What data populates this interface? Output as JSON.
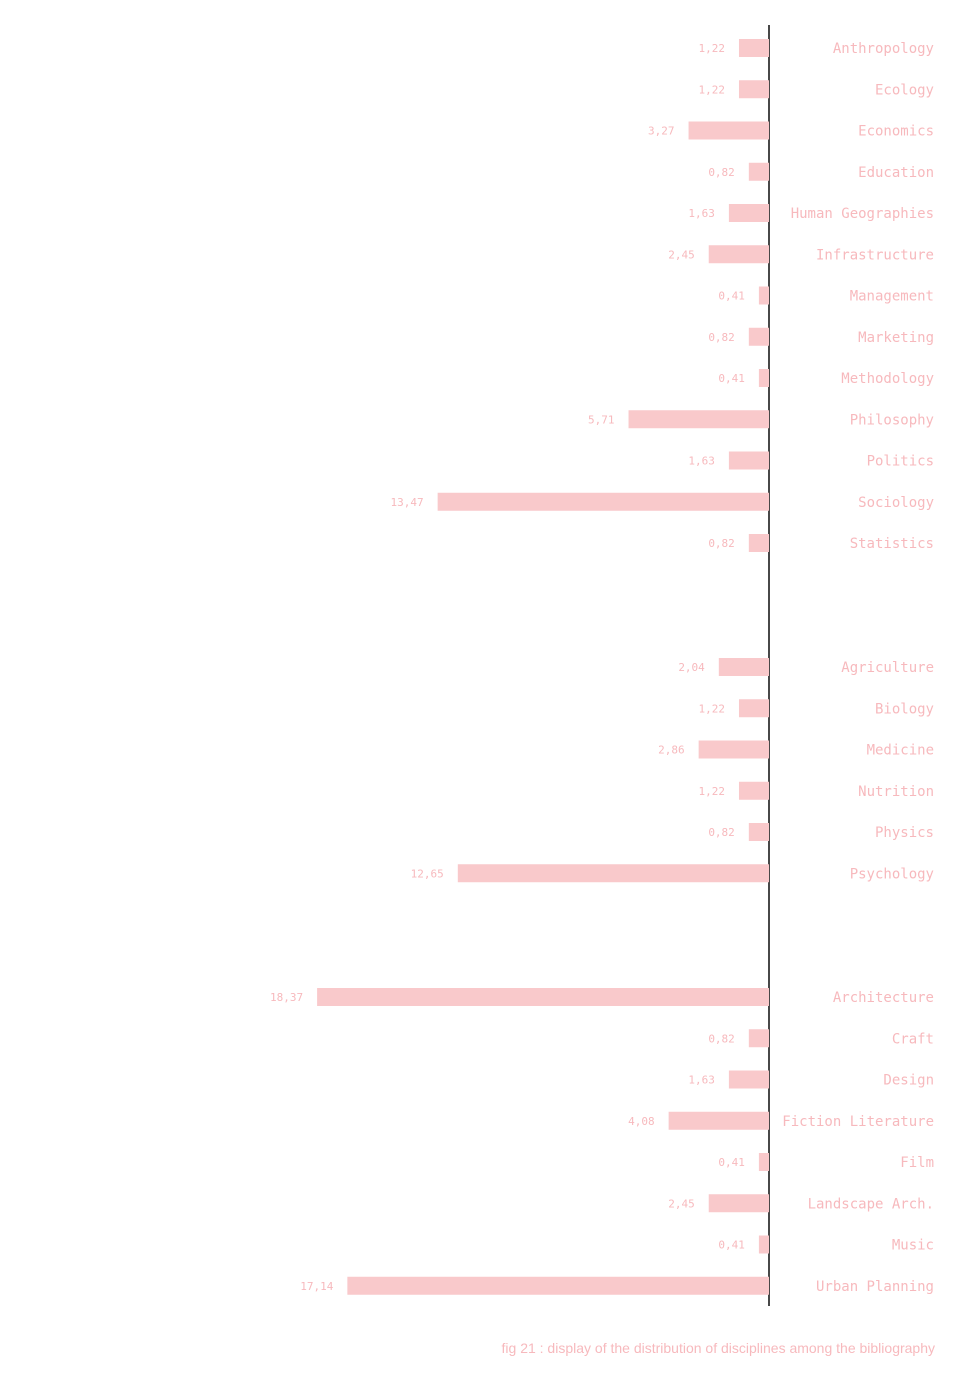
{
  "chart_data": {
    "type": "bar",
    "orientation": "horizontal",
    "bar_direction": "leftward",
    "title": "",
    "xlabel": "",
    "ylabel": "",
    "colors": {
      "bar": "#f9c9cb",
      "text": "#f7b9bd",
      "axis": "#1a1a1a"
    },
    "groups": [
      {
        "items": [
          {
            "label": "Anthropology",
            "value": 1.22,
            "value_label": "1,22"
          },
          {
            "label": "Ecology",
            "value": 1.22,
            "value_label": "1,22"
          },
          {
            "label": "Economics",
            "value": 3.27,
            "value_label": "3,27"
          },
          {
            "label": "Education",
            "value": 0.82,
            "value_label": "0,82"
          },
          {
            "label": "Human Geographies",
            "value": 1.63,
            "value_label": "1,63"
          },
          {
            "label": "Infrastructure",
            "value": 2.45,
            "value_label": "2,45"
          },
          {
            "label": "Management",
            "value": 0.41,
            "value_label": "0,41"
          },
          {
            "label": "Marketing",
            "value": 0.82,
            "value_label": "0,82"
          },
          {
            "label": "Methodology",
            "value": 0.41,
            "value_label": "0,41"
          },
          {
            "label": "Philosophy",
            "value": 5.71,
            "value_label": "5,71"
          },
          {
            "label": "Politics",
            "value": 1.63,
            "value_label": "1,63"
          },
          {
            "label": "Sociology",
            "value": 13.47,
            "value_label": "13,47"
          },
          {
            "label": "Statistics",
            "value": 0.82,
            "value_label": "0,82"
          }
        ]
      },
      {
        "items": [
          {
            "label": "Agriculture",
            "value": 2.04,
            "value_label": "2,04"
          },
          {
            "label": "Biology",
            "value": 1.22,
            "value_label": "1,22"
          },
          {
            "label": "Medicine",
            "value": 2.86,
            "value_label": "2,86"
          },
          {
            "label": "Nutrition",
            "value": 1.22,
            "value_label": "1,22"
          },
          {
            "label": "Physics",
            "value": 0.82,
            "value_label": "0,82"
          },
          {
            "label": "Psychology",
            "value": 12.65,
            "value_label": "12,65"
          }
        ]
      },
      {
        "items": [
          {
            "label": "Architecture",
            "value": 18.37,
            "value_label": "18,37"
          },
          {
            "label": "Craft",
            "value": 0.82,
            "value_label": "0,82"
          },
          {
            "label": "Design",
            "value": 1.63,
            "value_label": "1,63"
          },
          {
            "label": "Fiction Literature",
            "value": 4.08,
            "value_label": "4,08"
          },
          {
            "label": "Film",
            "value": 0.41,
            "value_label": "0,41"
          },
          {
            "label": "Landscape Arch.",
            "value": 2.45,
            "value_label": "2,45"
          },
          {
            "label": "Music",
            "value": 0.41,
            "value_label": "0,41"
          },
          {
            "label": "Urban Planning",
            "value": 17.14,
            "value_label": "17,14"
          }
        ]
      }
    ]
  },
  "caption": "fig 21 :  display of the distribution of disciplines among the bibliography"
}
